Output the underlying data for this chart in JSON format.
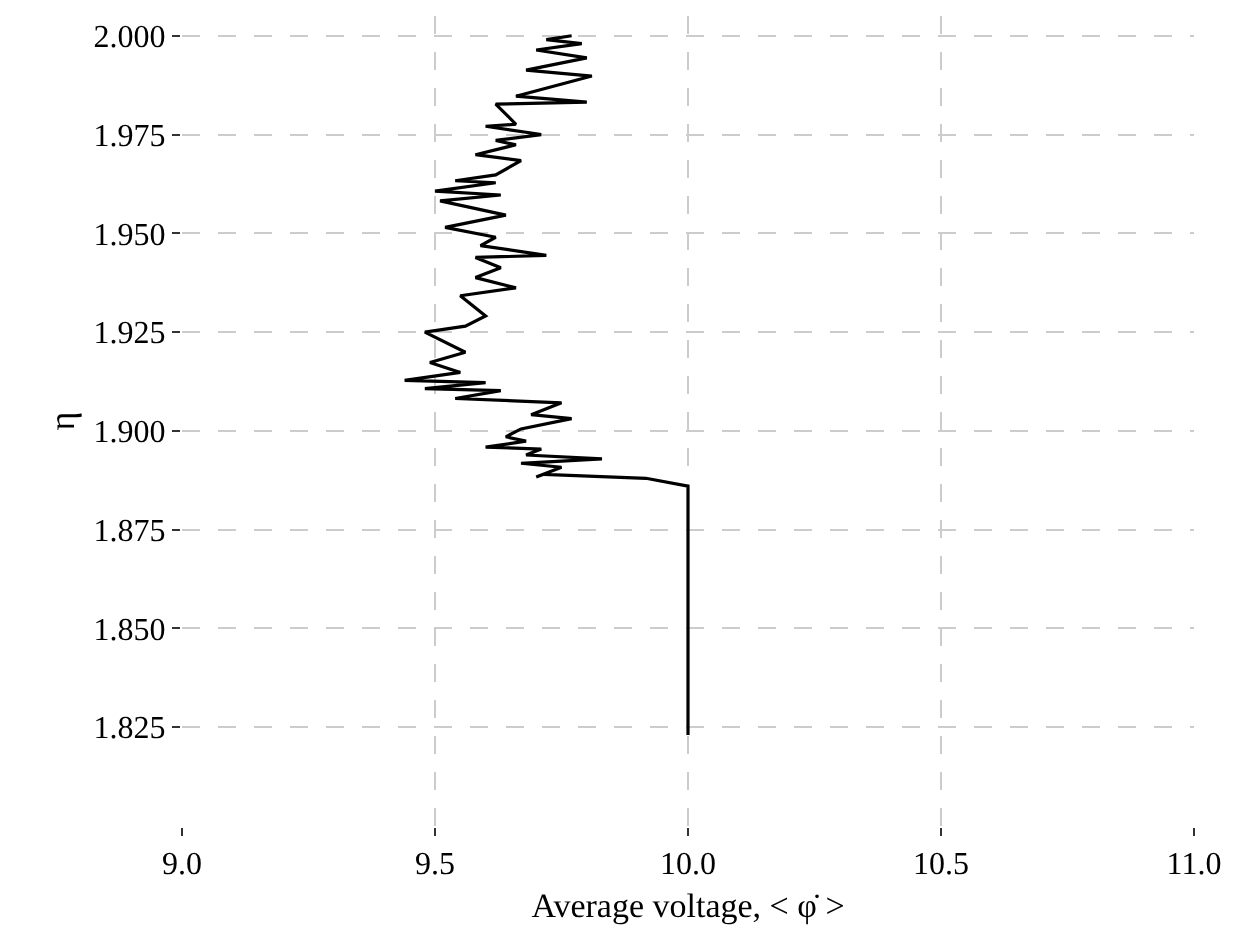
{
  "chart_data": {
    "type": "line",
    "xlabel": "Average voltage, < φ̇ >",
    "ylabel": "η",
    "xlim": [
      9.0,
      11.0
    ],
    "xticks": [
      {
        "value": 9.0,
        "label": "9.0"
      },
      {
        "value": 9.5,
        "label": "9.5"
      },
      {
        "value": 10.0,
        "label": "10.0"
      },
      {
        "value": 10.5,
        "label": "10.5"
      },
      {
        "value": 11.0,
        "label": "11.0"
      }
    ],
    "ylim": [
      1.8,
      2.005
    ],
    "yticks": [
      {
        "value": 1.825,
        "label": "1.825"
      },
      {
        "value": 1.85,
        "label": "1.850"
      },
      {
        "value": 1.875,
        "label": "1.875"
      },
      {
        "value": 1.9,
        "label": "1.900"
      },
      {
        "value": 1.925,
        "label": "1.925"
      },
      {
        "value": 1.95,
        "label": "1.950"
      },
      {
        "value": 1.975,
        "label": "1.975"
      },
      {
        "value": 2.0,
        "label": "2.000"
      }
    ],
    "grid": true,
    "marker": "none",
    "line_style": "solid",
    "series": [
      {
        "color": "#000000",
        "x": [
          10.0,
          10.0,
          9.917,
          9.715,
          9.7,
          9.75,
          9.67,
          9.83,
          9.68,
          9.71,
          9.6,
          9.68,
          9.64,
          9.67,
          9.77,
          9.69,
          9.75,
          9.54,
          9.63,
          9.48,
          9.6,
          9.44,
          9.55,
          9.49,
          9.56,
          9.48,
          9.56,
          9.6,
          9.55,
          9.66,
          9.58,
          9.63,
          9.58,
          9.72,
          9.59,
          9.62,
          9.52,
          9.64,
          9.51,
          9.63,
          9.5,
          9.62,
          9.54,
          9.62,
          9.67,
          9.58,
          9.66,
          9.62,
          9.71,
          9.6,
          9.66,
          9.62,
          9.8,
          9.66,
          9.81,
          9.68,
          9.8,
          9.7,
          9.79,
          9.72,
          9.77
        ],
        "values": [
          1.823,
          1.886,
          1.888,
          1.889,
          1.8883,
          1.8908,
          1.8918,
          1.8929,
          1.8939,
          1.8954,
          1.8959,
          1.8974,
          1.8985,
          1.9005,
          1.9031,
          1.9041,
          1.9071,
          1.9082,
          1.9102,
          1.9107,
          1.9122,
          1.9128,
          1.9148,
          1.9173,
          1.9199,
          1.925,
          1.9265,
          1.9291,
          1.9342,
          1.9362,
          1.9388,
          1.9413,
          1.9439,
          1.9444,
          1.9469,
          1.949,
          1.9515,
          1.9546,
          1.9582,
          1.9597,
          1.9607,
          1.9628,
          1.9633,
          1.9648,
          1.9684,
          1.9699,
          1.9724,
          1.9735,
          1.975,
          1.9771,
          1.9776,
          1.9827,
          1.9832,
          1.9847,
          1.9898,
          1.9913,
          1.9944,
          1.9964,
          1.998,
          1.999,
          2.0
        ]
      }
    ]
  }
}
